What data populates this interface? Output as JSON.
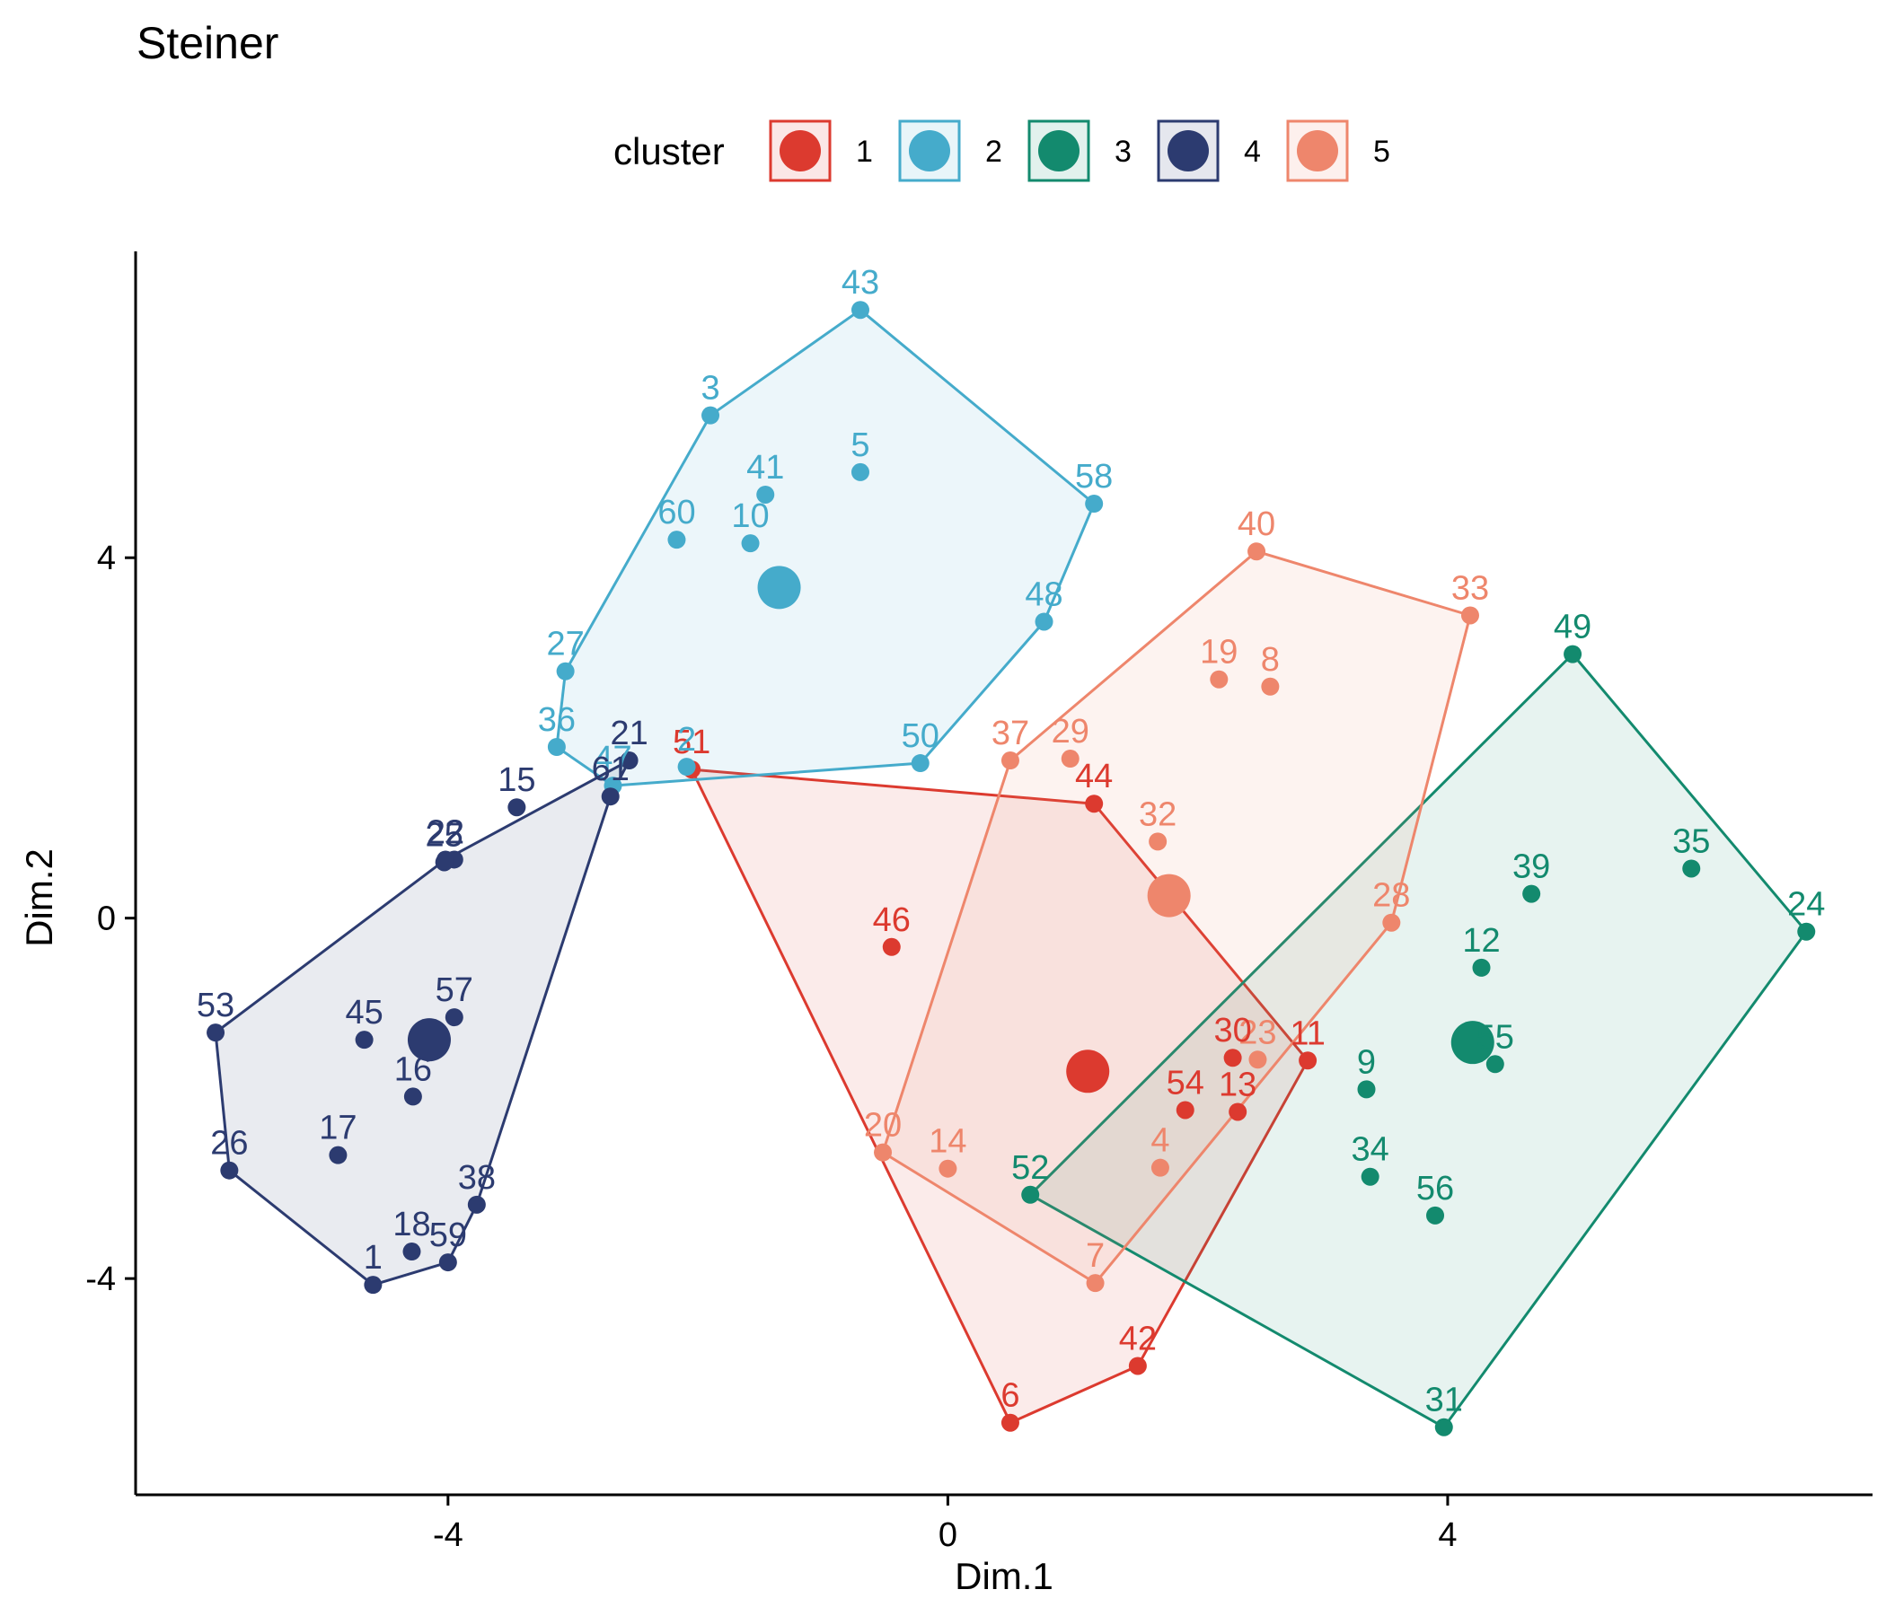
{
  "chart_data": {
    "type": "scatter",
    "title": "Steiner",
    "xlabel": "Dim.1",
    "ylabel": "Dim.2",
    "xlim": [
      -6.5,
      7.4
    ],
    "ylim": [
      -6.4,
      7.4
    ],
    "x_ticks": [
      -4,
      0,
      4
    ],
    "y_ticks": [
      -4,
      0,
      4
    ],
    "x_tick_labels": [
      "-4",
      "0",
      "4"
    ],
    "y_tick_labels": [
      "-4",
      "0",
      "4"
    ],
    "grid": false,
    "legend": {
      "title": "cluster",
      "position": "top",
      "entries": [
        "1",
        "2",
        "3",
        "4",
        "5"
      ]
    },
    "colors": {
      "1": "#dc3a2f",
      "2": "#45abcb",
      "3": "#138a6e",
      "4": "#2c3b70",
      "5": "#ee866c"
    },
    "centroids": [
      {
        "cluster": "1",
        "x": 1.12,
        "y": -1.7
      },
      {
        "cluster": "2",
        "x": -1.35,
        "y": 3.67
      },
      {
        "cluster": "3",
        "x": 4.2,
        "y": -1.38
      },
      {
        "cluster": "4",
        "x": -4.15,
        "y": -1.35
      },
      {
        "cluster": "5",
        "x": 1.77,
        "y": 0.25
      }
    ],
    "hulls": {
      "1": [
        51,
        44,
        11,
        42,
        6
      ],
      "2": [
        43,
        58,
        48,
        50,
        47,
        36,
        27,
        3
      ],
      "3": [
        49,
        24,
        31,
        52
      ],
      "4": [
        21,
        61,
        38,
        59,
        1,
        26,
        53,
        22
      ],
      "5": [
        40,
        33,
        28,
        7,
        20,
        37
      ]
    },
    "points": [
      {
        "label": "1",
        "cluster": "4",
        "x": -4.6,
        "y": -4.07
      },
      {
        "label": "2",
        "cluster": "4",
        "x": -3.95,
        "y": 0.65
      },
      {
        "label": "3",
        "cluster": "2",
        "x": -1.9,
        "y": 5.58
      },
      {
        "label": "4",
        "cluster": "5",
        "x": 1.7,
        "y": -2.77
      },
      {
        "label": "5",
        "cluster": "2",
        "x": -0.7,
        "y": 4.95
      },
      {
        "label": "6",
        "cluster": "1",
        "x": 0.5,
        "y": -5.6
      },
      {
        "label": "7",
        "cluster": "5",
        "x": 1.18,
        "y": -4.05
      },
      {
        "label": "8",
        "cluster": "5",
        "x": 2.58,
        "y": 2.57
      },
      {
        "label": "9",
        "cluster": "3",
        "x": 3.35,
        "y": -1.9
      },
      {
        "label": "10",
        "cluster": "2",
        "x": -1.58,
        "y": 4.16
      },
      {
        "label": "11",
        "cluster": "1",
        "x": 2.88,
        "y": -1.58
      },
      {
        "label": "12",
        "cluster": "3",
        "x": 4.27,
        "y": -0.55
      },
      {
        "label": "13",
        "cluster": "1",
        "x": 2.32,
        "y": -2.15
      },
      {
        "label": "14",
        "cluster": "5",
        "x": 0.0,
        "y": -2.78
      },
      {
        "label": "15",
        "cluster": "4",
        "x": -3.45,
        "y": 1.23
      },
      {
        "label": "16",
        "cluster": "4",
        "x": -4.28,
        "y": -1.98
      },
      {
        "label": "17",
        "cluster": "4",
        "x": -4.88,
        "y": -2.63
      },
      {
        "label": "18",
        "cluster": "4",
        "x": -4.29,
        "y": -3.7
      },
      {
        "label": "19",
        "cluster": "5",
        "x": 2.17,
        "y": 2.65
      },
      {
        "label": "20",
        "cluster": "5",
        "x": -0.52,
        "y": -2.6
      },
      {
        "label": "21",
        "cluster": "4",
        "x": -2.55,
        "y": 1.75
      },
      {
        "label": "22",
        "cluster": "4",
        "x": -4.02,
        "y": 0.65
      },
      {
        "label": "23",
        "cluster": "5",
        "x": 2.48,
        "y": -1.57
      },
      {
        "label": "24",
        "cluster": "3",
        "x": 6.87,
        "y": -0.15
      },
      {
        "label": "25",
        "cluster": "4",
        "x": -4.03,
        "y": 0.62
      },
      {
        "label": "26",
        "cluster": "4",
        "x": -5.75,
        "y": -2.8
      },
      {
        "label": "27",
        "cluster": "2",
        "x": -3.06,
        "y": 2.74
      },
      {
        "label": "28",
        "cluster": "5",
        "x": 3.55,
        "y": -0.05
      },
      {
        "label": "29",
        "cluster": "5",
        "x": 0.98,
        "y": 1.77
      },
      {
        "label": "30",
        "cluster": "1",
        "x": 2.28,
        "y": -1.55
      },
      {
        "label": "31",
        "cluster": "3",
        "x": 3.97,
        "y": -5.65
      },
      {
        "label": "32",
        "cluster": "5",
        "x": 1.68,
        "y": 0.85
      },
      {
        "label": "33",
        "cluster": "5",
        "x": 4.18,
        "y": 3.36
      },
      {
        "label": "34",
        "cluster": "3",
        "x": 3.38,
        "y": -2.87
      },
      {
        "label": "35",
        "cluster": "3",
        "x": 5.95,
        "y": 0.55
      },
      {
        "label": "36",
        "cluster": "2",
        "x": -3.13,
        "y": 1.9
      },
      {
        "label": "37",
        "cluster": "5",
        "x": 0.5,
        "y": 1.75
      },
      {
        "label": "38",
        "cluster": "4",
        "x": -3.77,
        "y": -3.18
      },
      {
        "label": "39",
        "cluster": "3",
        "x": 4.67,
        "y": 0.27
      },
      {
        "label": "40",
        "cluster": "5",
        "x": 2.47,
        "y": 4.07
      },
      {
        "label": "41",
        "cluster": "2",
        "x": -1.46,
        "y": 4.7
      },
      {
        "label": "42",
        "cluster": "1",
        "x": 1.52,
        "y": -4.97
      },
      {
        "label": "43",
        "cluster": "2",
        "x": -0.7,
        "y": 6.75
      },
      {
        "label": "44",
        "cluster": "1",
        "x": 1.17,
        "y": 1.27
      },
      {
        "label": "45",
        "cluster": "4",
        "x": -4.67,
        "y": -1.35
      },
      {
        "label": "46",
        "cluster": "1",
        "x": -0.45,
        "y": -0.32
      },
      {
        "label": "47",
        "cluster": "2",
        "x": -2.68,
        "y": 1.47
      },
      {
        "label": "48",
        "cluster": "2",
        "x": 0.77,
        "y": 3.29
      },
      {
        "label": "49",
        "cluster": "3",
        "x": 5.0,
        "y": 2.93
      },
      {
        "label": "50",
        "cluster": "2",
        "x": -0.22,
        "y": 1.72
      },
      {
        "label": "51",
        "cluster": "1",
        "x": -2.05,
        "y": 1.65
      },
      {
        "label": "52",
        "cluster": "3",
        "x": 0.66,
        "y": -3.07
      },
      {
        "label": "53",
        "cluster": "4",
        "x": -5.86,
        "y": -1.27
      },
      {
        "label": "54",
        "cluster": "1",
        "x": 1.9,
        "y": -2.13
      },
      {
        "label": "55",
        "cluster": "3",
        "x": 4.38,
        "y": -1.62
      },
      {
        "label": "56",
        "cluster": "3",
        "x": 3.9,
        "y": -3.3
      },
      {
        "label": "57",
        "cluster": "4",
        "x": -3.95,
        "y": -1.1
      },
      {
        "label": "58",
        "cluster": "2",
        "x": 1.17,
        "y": 4.6
      },
      {
        "label": "59",
        "cluster": "4",
        "x": -4.0,
        "y": -3.82
      },
      {
        "label": "60",
        "cluster": "2",
        "x": -2.17,
        "y": 4.2
      },
      {
        "label": "61",
        "cluster": "4",
        "x": -2.7,
        "y": 1.35
      },
      {
        "label": "2b",
        "display": "2",
        "cluster": "2",
        "x": -2.09,
        "y": 1.68
      }
    ]
  }
}
